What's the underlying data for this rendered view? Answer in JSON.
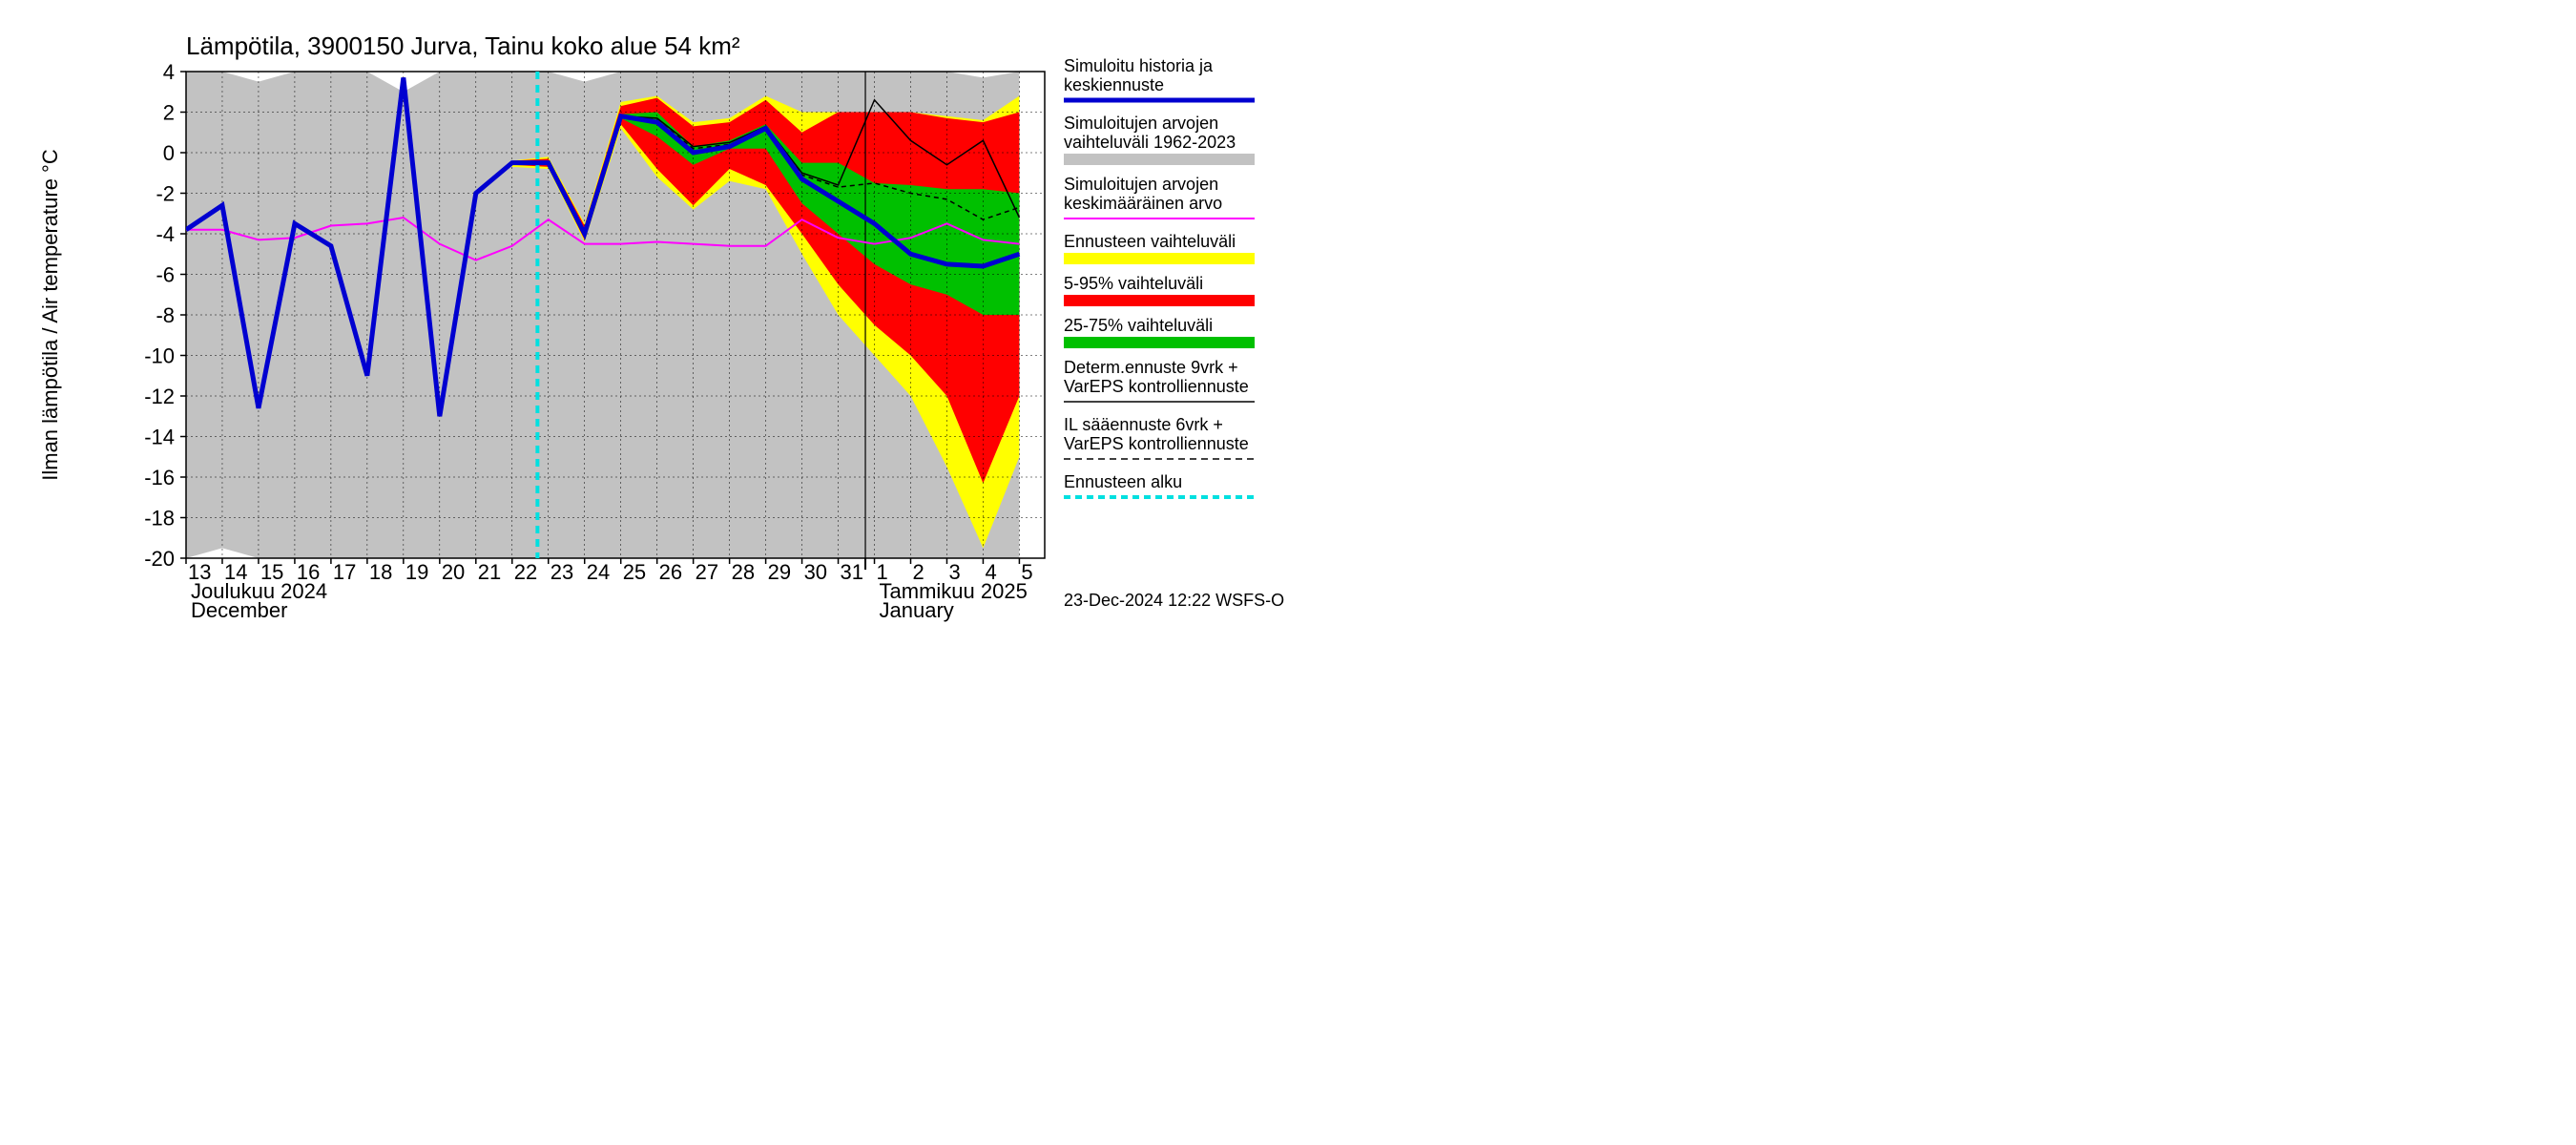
{
  "chart": {
    "type": "line-band-forecast",
    "title": "Lämpötila, 3900150 Jurva, Tainu koko alue 54 km²",
    "y_label": "Ilman lämpötila / Air temperature   °C",
    "x_month_left_fi": "Joulukuu  2024",
    "x_month_left_en": "December",
    "x_month_right_fi": "Tammikuu  2025",
    "x_month_right_en": "January",
    "footer": "23-Dec-2024 12:22 WSFS-O",
    "ylim": [
      -20,
      4
    ],
    "ytick_step": 2,
    "yticks": [
      4,
      2,
      0,
      -2,
      -4,
      -6,
      -8,
      -10,
      -12,
      -14,
      -16,
      -18,
      -20
    ],
    "x_days": [
      "13",
      "14",
      "15",
      "16",
      "17",
      "18",
      "19",
      "20",
      "21",
      "22",
      "23",
      "24",
      "25",
      "26",
      "27",
      "28",
      "29",
      "30",
      "31",
      "1",
      "2",
      "3",
      "4",
      "5"
    ],
    "x_tick_positions": [
      0,
      1,
      2,
      3,
      4,
      5,
      6,
      7,
      8,
      9,
      10,
      11,
      12,
      13,
      14,
      15,
      16,
      17,
      18,
      19,
      20,
      21,
      22,
      23
    ],
    "forecast_start_idx": 9.7,
    "colors": {
      "bg_hist": "#c2c2c2",
      "grid": "#000000",
      "yellow": "#ffff00",
      "red": "#ff0000",
      "green": "#00c000",
      "blue": "#0000d0",
      "black": "#000000",
      "magenta": "#ff00ff",
      "cyan": "#00e0e0",
      "white": "#ffffff"
    },
    "line_widths": {
      "blue": 5,
      "black_solid": 1.5,
      "black_dash": 1.5,
      "magenta": 2,
      "cyan": 4,
      "grid": 1
    },
    "gray_top": [
      4,
      4,
      3.5,
      4,
      4,
      4,
      3,
      4,
      4,
      4,
      4,
      3.5,
      4,
      4,
      4,
      4,
      4,
      4,
      4,
      4,
      4,
      4,
      3.7,
      4
    ],
    "gray_bottom": [
      -20,
      -19.5,
      -20,
      -20,
      -20,
      -20,
      -20,
      -20,
      -20,
      -20,
      -20,
      -20,
      -20,
      -20,
      -20,
      -20,
      -20,
      -20,
      -20,
      -20,
      -20,
      -20,
      -20,
      -20
    ],
    "yellow_top": [
      null,
      null,
      null,
      null,
      null,
      null,
      null,
      null,
      null,
      -0.4,
      -0.2,
      -3.5,
      2.5,
      2.8,
      1.5,
      1.7,
      2.8,
      2.0,
      2.0,
      2.0,
      2.0,
      1.8,
      1.6,
      2.8
    ],
    "yellow_bottom": [
      null,
      null,
      null,
      null,
      null,
      null,
      null,
      null,
      null,
      -0.7,
      -0.8,
      -4.4,
      1.2,
      -1.2,
      -2.8,
      -1.4,
      -1.8,
      -5.0,
      -8.0,
      -10.0,
      -12.0,
      -15.5,
      -19.5,
      -15.0
    ],
    "red_top": [
      null,
      null,
      null,
      null,
      null,
      null,
      null,
      null,
      null,
      -0.4,
      -0.3,
      -3.6,
      2.3,
      2.7,
      1.3,
      1.5,
      2.6,
      1.0,
      2.0,
      2.0,
      2.0,
      1.7,
      1.5,
      2.0
    ],
    "red_bottom": [
      null,
      null,
      null,
      null,
      null,
      null,
      null,
      null,
      null,
      -0.6,
      -0.7,
      -4.3,
      1.4,
      -0.8,
      -2.6,
      -0.8,
      -1.6,
      -4.0,
      -6.5,
      -8.5,
      -10.0,
      -12.0,
      -16.3,
      -12.0
    ],
    "green_top": [
      null,
      null,
      null,
      null,
      null,
      null,
      null,
      null,
      null,
      -0.4,
      -0.4,
      -3.8,
      1.9,
      2.0,
      0.3,
      0.6,
      1.4,
      -0.5,
      -0.5,
      -1.5,
      -1.6,
      -1.8,
      -1.8,
      -2.0
    ],
    "green_bottom": [
      null,
      null,
      null,
      null,
      null,
      null,
      null,
      null,
      null,
      -0.5,
      -0.6,
      -4.1,
      1.7,
      0.8,
      -0.6,
      0.2,
      0.2,
      -2.5,
      -4.0,
      -5.5,
      -6.5,
      -7.0,
      -8.0,
      -8.0
    ],
    "blue_line": [
      -3.8,
      -2.6,
      -12.6,
      -3.5,
      -4.6,
      -11.0,
      3.7,
      -13.0,
      -2.0,
      -0.5,
      -0.5,
      -4.0,
      1.8,
      1.5,
      0.0,
      0.3,
      1.2,
      -1.3,
      -2.4,
      -3.5,
      -5.0,
      -5.5,
      -5.6,
      -5.0
    ],
    "black_solid": [
      -3.8,
      -2.6,
      -12.6,
      -3.5,
      -4.6,
      -11.0,
      3.7,
      -13.0,
      -2.0,
      -0.5,
      -0.5,
      -4.0,
      1.8,
      1.7,
      0.3,
      0.5,
      1.3,
      -1.0,
      -1.6,
      2.6,
      0.6,
      -0.6,
      0.6,
      -3.2
    ],
    "black_dash": [
      null,
      null,
      null,
      null,
      null,
      null,
      null,
      null,
      null,
      -0.5,
      -0.5,
      -4.0,
      1.8,
      1.6,
      0.2,
      0.4,
      1.2,
      -1.1,
      -1.7,
      -1.5,
      -2.0,
      -2.3,
      -3.3,
      -2.7
    ],
    "magenta": [
      -3.8,
      -3.8,
      -4.3,
      -4.2,
      -3.6,
      -3.5,
      -3.2,
      -4.5,
      -5.3,
      -4.6,
      -3.3,
      -4.5,
      -4.5,
      -4.4,
      -4.5,
      -4.6,
      -4.6,
      -3.3,
      -4.2,
      -4.5,
      -4.2,
      -3.5,
      -4.3,
      -4.5
    ]
  },
  "legend": {
    "items": [
      {
        "label1": "Simuloitu historia ja",
        "label2": "keskiennuste",
        "type": "line",
        "color": "#0000d0",
        "width": 5
      },
      {
        "label1": "Simuloitujen arvojen",
        "label2": "vaihteluväli 1962-2023",
        "type": "band",
        "color": "#c2c2c2"
      },
      {
        "label1": "Simuloitujen arvojen",
        "label2": "keskimääräinen arvo",
        "type": "line",
        "color": "#ff00ff",
        "width": 2
      },
      {
        "label1": "Ennusteen vaihteluväli",
        "label2": "",
        "type": "band",
        "color": "#ffff00"
      },
      {
        "label1": "5-95% vaihteluväli",
        "label2": "",
        "type": "band",
        "color": "#ff0000"
      },
      {
        "label1": "25-75% vaihteluväli",
        "label2": "",
        "type": "band",
        "color": "#00c000"
      },
      {
        "label1": "Determ.ennuste 9vrk +",
        "label2": "VarEPS kontrolliennuste",
        "type": "line",
        "color": "#000000",
        "width": 1.5
      },
      {
        "label1": "IL sääennuste 6vrk  +",
        "label2": " VarEPS kontrolliennuste",
        "type": "line-dash",
        "color": "#000000",
        "width": 1.5
      },
      {
        "label1": "Ennusteen alku",
        "label2": "",
        "type": "line-dash",
        "color": "#00e0e0",
        "width": 4
      }
    ]
  }
}
